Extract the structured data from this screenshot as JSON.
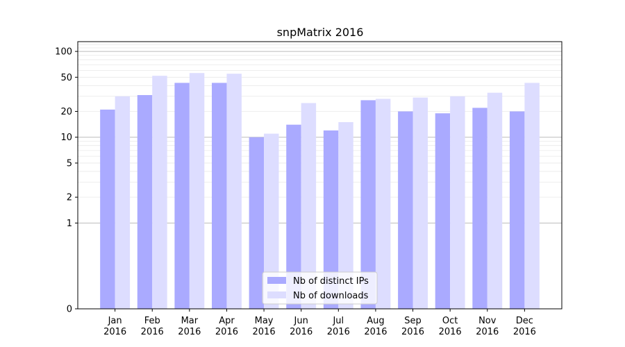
{
  "chart_data": {
    "type": "bar",
    "title": "snpMatrix 2016",
    "xlabel": "",
    "ylabel": "",
    "y_scale": "symlog",
    "ylim": [
      0,
      130
    ],
    "grid": true,
    "legend_position": "bottom-center",
    "categories": [
      [
        "Jan",
        "2016"
      ],
      [
        "Feb",
        "2016"
      ],
      [
        "Mar",
        "2016"
      ],
      [
        "Apr",
        "2016"
      ],
      [
        "May",
        "2016"
      ],
      [
        "Jun",
        "2016"
      ],
      [
        "Jul",
        "2016"
      ],
      [
        "Aug",
        "2016"
      ],
      [
        "Sep",
        "2016"
      ],
      [
        "Oct",
        "2016"
      ],
      [
        "Nov",
        "2016"
      ],
      [
        "Dec",
        "2016"
      ]
    ],
    "y_ticks": [
      {
        "value": 0,
        "label": "0"
      },
      {
        "value": 1,
        "label": "1"
      },
      {
        "value": 2,
        "label": "2"
      },
      {
        "value": 5,
        "label": "5"
      },
      {
        "value": 10,
        "label": "10"
      },
      {
        "value": 20,
        "label": "20"
      },
      {
        "value": 50,
        "label": "50"
      },
      {
        "value": 100,
        "label": "100"
      }
    ],
    "series": [
      {
        "name": "Nb of distinct IPs",
        "color": "#aaaaff",
        "values": [
          21,
          31,
          43,
          43,
          10,
          14,
          12,
          27,
          20,
          19,
          22,
          20
        ]
      },
      {
        "name": "Nb of downloads",
        "color": "#ddddff",
        "values": [
          30,
          52,
          56,
          55,
          11,
          25,
          15,
          28,
          29,
          30,
          33,
          43
        ]
      }
    ]
  }
}
